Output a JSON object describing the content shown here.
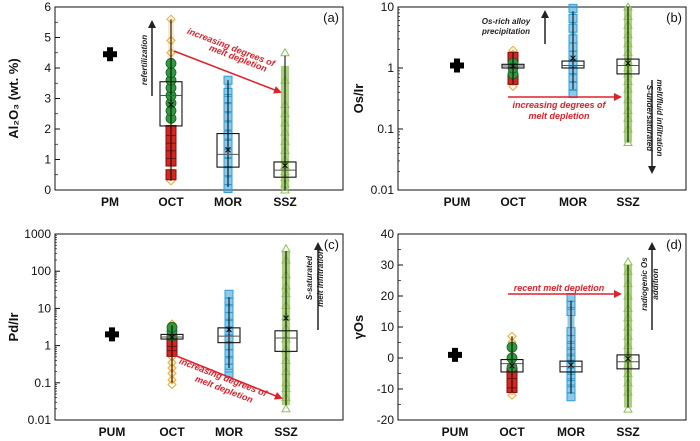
{
  "chart_data": [
    {
      "id": "a",
      "type": "box",
      "panel_label": "(a)",
      "ylabel": "Al₂O₃ (wt. %)",
      "yscale": "linear",
      "ylim": [
        0,
        6
      ],
      "yticks": [
        0,
        1,
        2,
        3,
        4,
        5,
        6
      ],
      "ytick_labels": [
        "0",
        "1",
        "2",
        "3",
        "4",
        "5",
        "6"
      ],
      "categories": [
        "PM",
        "OCT",
        "MOR",
        "SSZ"
      ],
      "reference": {
        "category": "PM",
        "value": 4.45
      },
      "groups": [
        {
          "name": "OCT",
          "box": {
            "q1": 2.1,
            "median": 3.1,
            "q3": 3.55,
            "mean": 2.8,
            "min": 0.3,
            "max": 5.6
          },
          "points_orange": [
            0.3,
            0.55,
            0.9,
            1.3,
            1.8,
            2.5,
            3.0,
            3.5,
            3.9,
            4.2,
            4.5,
            4.9,
            5.6
          ],
          "points_green": [
            2.35,
            2.6,
            2.85,
            3.1,
            3.35,
            3.6,
            3.85,
            4.15
          ],
          "points_red": [
            0.5,
            0.95,
            1.2,
            1.45,
            1.7,
            1.95
          ]
        },
        {
          "name": "MOR",
          "box": {
            "q1": 0.75,
            "median": 1.17,
            "q3": 1.85,
            "mean": 1.32,
            "min": 0.1,
            "max": 3.6
          },
          "points": [
            0.05,
            0.3,
            0.6,
            0.9,
            1.2,
            1.5,
            1.8,
            2.1,
            2.4,
            2.7,
            3.0,
            3.2,
            3.6
          ]
        },
        {
          "name": "SSZ",
          "box": {
            "q1": 0.42,
            "median": 0.65,
            "q3": 0.92,
            "mean": 0.8,
            "min": 0.0,
            "max": 4.4
          },
          "points": [
            0.0,
            0.2,
            0.4,
            0.6,
            0.8,
            1.0,
            1.3,
            1.6,
            1.9,
            2.2,
            2.5,
            2.8,
            3.6,
            4.5
          ]
        }
      ],
      "annotations": [
        {
          "text": "refertilization",
          "kind": "arrow-up",
          "color": "#222222"
        },
        {
          "text_lines": [
            "increasing degrees of",
            "melt depletion"
          ],
          "kind": "arrow",
          "color": "#e0202a"
        }
      ]
    },
    {
      "id": "b",
      "type": "box",
      "panel_label": "(b)",
      "ylabel": "Os/Ir",
      "yscale": "log",
      "ylim": [
        0.01,
        10
      ],
      "yticks": [
        0.01,
        0.1,
        1,
        10
      ],
      "ytick_labels": [
        "0.01",
        "0.1",
        "1",
        "10"
      ],
      "categories": [
        "PUM",
        "OCT",
        "MOR",
        "SSZ"
      ],
      "reference": {
        "category": "PUM",
        "value": 1.1
      },
      "groups": [
        {
          "name": "OCT",
          "box": {
            "q1": 1.0,
            "median": 1.08,
            "q3": 1.15,
            "mean": 1.08,
            "min": 0.55,
            "max": 1.85
          },
          "points_orange": [
            0.5,
            0.6,
            1.7,
            1.95
          ],
          "points_green": [
            0.8,
            1.0,
            1.2
          ],
          "points_red": [
            0.65,
            1.5
          ]
        },
        {
          "name": "MOR",
          "box": {
            "q1": 1.0,
            "median": 1.1,
            "q3": 1.3,
            "mean": 1.45,
            "min": 0.45,
            "max": 8.5
          },
          "points": [
            0.38,
            0.5,
            0.7,
            0.9,
            1.2,
            1.6,
            2.2,
            3.0,
            4.5,
            6.5,
            9.5
          ]
        },
        {
          "name": "SSZ",
          "box": {
            "q1": 0.8,
            "median": 1.1,
            "q3": 1.4,
            "mean": 1.2,
            "min": 0.06,
            "max": 10
          },
          "points": [
            0.06,
            0.1,
            0.15,
            0.2,
            0.3,
            0.45,
            0.6,
            0.8,
            1.0,
            1.3,
            1.8,
            2.5,
            3.5,
            5.0,
            7.0,
            10
          ]
        }
      ],
      "annotations": [
        {
          "text_lines": [
            "Os-rich alloy",
            "precipitation"
          ],
          "kind": "arrow-up",
          "color": "#222222"
        },
        {
          "text_lines": [
            "increasing degrees of",
            "melt depletion"
          ],
          "kind": "arrow-right",
          "color": "#e0202a"
        },
        {
          "text_lines": [
            "S-undersaturated",
            "melt/fluid infiltration"
          ],
          "kind": "arrow-down",
          "color": "#222222"
        }
      ]
    },
    {
      "id": "c",
      "type": "box",
      "panel_label": "(c)",
      "ylabel": "Pd/Ir",
      "yscale": "log",
      "ylim": [
        0.01,
        1000
      ],
      "yticks": [
        0.01,
        0.1,
        1,
        10,
        100,
        1000
      ],
      "ytick_labels": [
        "0.01",
        "0.1",
        "1",
        "10",
        "100",
        "1000"
      ],
      "categories": [
        "PUM",
        "OCT",
        "MOR",
        "SSZ"
      ],
      "reference": {
        "category": "PUM",
        "value": 2.0
      },
      "groups": [
        {
          "name": "OCT",
          "box": {
            "q1": 1.5,
            "median": 1.7,
            "q3": 2.0,
            "mean": 1.7,
            "min": 0.1,
            "max": 3.5
          },
          "points_orange": [
            0.09,
            0.12,
            0.18,
            0.25,
            0.35,
            0.5,
            3.0,
            3.8
          ],
          "points_green": [
            1.8,
            2.4,
            3.1
          ],
          "points_red": [
            0.7,
            1.0,
            1.3
          ]
        },
        {
          "name": "MOR",
          "box": {
            "q1": 1.2,
            "median": 1.8,
            "q3": 3.0,
            "mean": 2.7,
            "min": 0.25,
            "max": 20
          },
          "points": [
            0.18,
            0.25,
            0.4,
            0.6,
            1.0,
            1.5,
            2.5,
            4.0,
            6.0,
            10,
            15,
            24
          ]
        },
        {
          "name": "SSZ",
          "box": {
            "q1": 0.7,
            "median": 1.6,
            "q3": 2.5,
            "mean": 5.5,
            "min": 0.025,
            "max": 350
          },
          "points": [
            0.02,
            0.04,
            0.07,
            0.1,
            0.2,
            0.4,
            0.8,
            1.5,
            3,
            6,
            12,
            25,
            40,
            80,
            200,
            400
          ]
        }
      ],
      "annotations": [
        {
          "text_lines": [
            "S-saturated",
            "melt infiltration"
          ],
          "kind": "arrow-up",
          "color": "#222222"
        },
        {
          "text_lines": [
            "increasing degrees of",
            "melt depletion"
          ],
          "kind": "arrow",
          "color": "#e0202a"
        }
      ]
    },
    {
      "id": "d",
      "type": "box",
      "panel_label": "(d)",
      "ylabel": "γOs",
      "yscale": "linear",
      "ylim": [
        -20,
        40
      ],
      "yticks": [
        -20,
        -10,
        0,
        10,
        20,
        30,
        40
      ],
      "ytick_labels": [
        "-20",
        "-10",
        "0",
        "10",
        "20",
        "30",
        "40"
      ],
      "categories": [
        "PUM",
        "OCT",
        "MOR",
        "SSZ"
      ],
      "reference": {
        "category": "PUM",
        "value": 1
      },
      "groups": [
        {
          "name": "OCT",
          "box": {
            "q1": -4.5,
            "median": -1.8,
            "q3": -0.5,
            "mean": -2.5,
            "min": -11,
            "max": 7
          },
          "points_orange": [
            -12,
            -10.5,
            -6,
            5,
            7
          ],
          "points_green": [
            -3,
            0,
            3.5
          ],
          "points_red": [
            -9.5,
            -8,
            -5
          ]
        },
        {
          "name": "MOR",
          "box": {
            "q1": -4.5,
            "median": -2.8,
            "q3": -1.0,
            "mean": -2.3,
            "min": -11.5,
            "max": 18.5
          },
          "points": [
            -12.5,
            -10,
            -8,
            -6,
            -4,
            -2,
            0,
            2,
            4,
            6,
            8.5,
            15,
            17,
            19.5
          ]
        },
        {
          "name": "SSZ",
          "box": {
            "q1": -3.5,
            "median": -1.2,
            "q3": 1.0,
            "mean": -0.2,
            "min": -16,
            "max": 30
          },
          "points": [
            -16.5,
            -11,
            -8,
            -5,
            -2,
            1,
            4,
            7,
            10,
            13,
            16,
            20,
            24,
            28,
            31
          ]
        }
      ],
      "annotations": [
        {
          "text": "recent melt depletion",
          "kind": "arrow-right",
          "color": "#e0202a"
        },
        {
          "text_lines": [
            "radiogenic Os",
            "addition"
          ],
          "kind": "arrow-up",
          "color": "#222222"
        }
      ]
    }
  ],
  "colors": {
    "oct_orange": "#f4a623",
    "oct_green": "#2e9a3e",
    "oct_red": "#d7261e",
    "mor_blue": "#2f9ed8",
    "ssz_green": "#8cc152",
    "annotation_red": "#e0202a",
    "reference": "#000000"
  }
}
